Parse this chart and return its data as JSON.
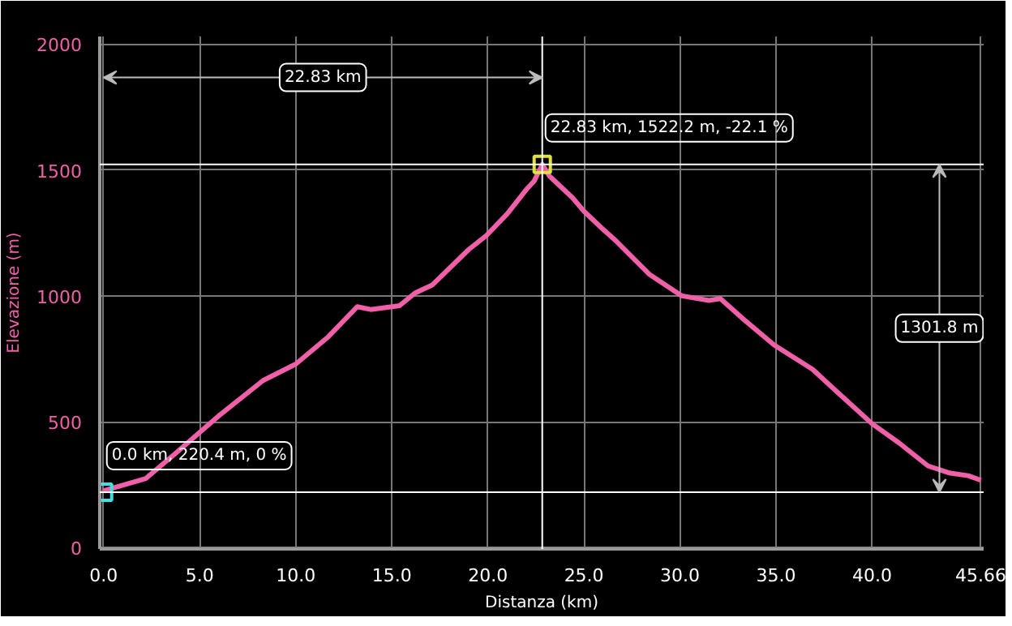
{
  "chart_data": {
    "type": "line",
    "xlabel": "Distanza (km)",
    "ylabel": "Elevazione (m)",
    "xlim": [
      -0.2,
      45.8
    ],
    "ylim": [
      -5,
      2030
    ],
    "xticks": [
      {
        "value": 0,
        "label": "0.0"
      },
      {
        "value": 5,
        "label": "5.0"
      },
      {
        "value": 10,
        "label": "10.0"
      },
      {
        "value": 15,
        "label": "15.0"
      },
      {
        "value": 20,
        "label": "20.0"
      },
      {
        "value": 25,
        "label": "25.0"
      },
      {
        "value": 30,
        "label": "30.0"
      },
      {
        "value": 35,
        "label": "35.0"
      },
      {
        "value": 40,
        "label": "40.0"
      },
      {
        "value": 45.66,
        "label": "45.66"
      }
    ],
    "yticks": [
      0,
      500,
      1000,
      1500,
      2000
    ],
    "grid": true,
    "series": [
      {
        "color": "#f060a8",
        "line_style": "solid",
        "marker": "none",
        "x": [
          0,
          0.05,
          2.2,
          3.7,
          6.0,
          8.3,
          10.0,
          11.7,
          13.2,
          13.9,
          15.4,
          16.2,
          17.1,
          19.0,
          19.9,
          21.0,
          22.0,
          22.4,
          22.83,
          23.2,
          24.4,
          25.0,
          25.9,
          26.7,
          28.4,
          30.1,
          31.5,
          32.1,
          33.2,
          34.9,
          36.9,
          38.3,
          40.0,
          41.4,
          42.9,
          44.0,
          45.0,
          45.66
        ],
        "values": [
          220.4,
          227,
          275,
          372,
          524,
          664,
          729,
          838,
          957,
          946,
          961,
          1011,
          1043,
          1184,
          1238,
          1325,
          1422,
          1455,
          1522.2,
          1476,
          1390,
          1336,
          1271,
          1216,
          1086,
          1000,
          982,
          989,
          914,
          805,
          708,
          610,
          492,
          416,
          325,
          297,
          286,
          268
        ]
      },
      {
        "type": "scatter",
        "marker": "square",
        "colors": [
          "#40e0e0",
          "#e0e040"
        ],
        "x": [
          0,
          22.83
        ],
        "values": [
          220.4,
          1522.2
        ]
      }
    ],
    "ref_lines": [
      {
        "axis": "x",
        "value": 22.83,
        "color": "#ffffff"
      },
      {
        "axis": "y",
        "value": 1522.2,
        "color": "#ffffff"
      },
      {
        "axis": "y",
        "value": 220.4,
        "color": "#ffffff"
      }
    ],
    "annotations": [
      "22.83 km",
      {
        "text": "22.83 km, 1522.2 m, -22.1 %",
        "x": 22.83,
        "y": 1522.2
      },
      {
        "text": "0.0 km, 220.4 m, 0 %",
        "x": 0,
        "y": 220.4
      },
      "1301.8 m"
    ]
  }
}
